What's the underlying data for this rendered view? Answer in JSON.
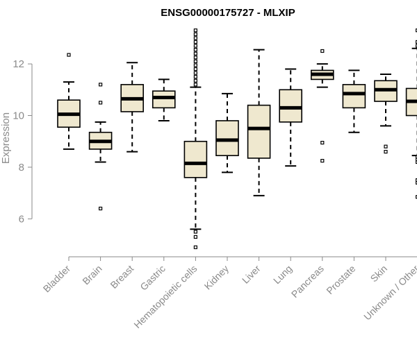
{
  "chart_data": {
    "type": "boxplot",
    "title": "ENSG00000175727 - MLXIP",
    "xlabel": "",
    "ylabel": "Expression",
    "ylim": [
      4.8,
      13.4
    ],
    "yticks": [
      6,
      8,
      10,
      12
    ],
    "box_fill": "#efe8cf",
    "stroke_color": "#000000",
    "axis_color": "#8a8a8a",
    "categories": [
      "Bladder",
      "Brain",
      "Breast",
      "Gastric",
      "Hematopoietic cells",
      "Kidney",
      "Liver",
      "Lung",
      "Pancreas",
      "Prostate",
      "Skin",
      "Unknown / Other"
    ],
    "boxes": [
      {
        "name": "Bladder",
        "whisker_low": 8.7,
        "q1": 9.55,
        "median": 10.05,
        "q3": 10.6,
        "whisker_high": 11.3,
        "outliers": [
          12.35
        ]
      },
      {
        "name": "Brain",
        "whisker_low": 8.2,
        "q1": 8.7,
        "median": 9.0,
        "q3": 9.35,
        "whisker_high": 9.75,
        "outliers": [
          6.4,
          10.5,
          11.2
        ]
      },
      {
        "name": "Breast",
        "whisker_low": 8.6,
        "q1": 10.15,
        "median": 10.65,
        "q3": 11.2,
        "whisker_high": 12.05,
        "outliers": []
      },
      {
        "name": "Gastric",
        "whisker_low": 9.8,
        "q1": 10.3,
        "median": 10.7,
        "q3": 10.95,
        "whisker_high": 11.4,
        "outliers": []
      },
      {
        "name": "Hematopoietic cells",
        "whisker_low": 5.6,
        "q1": 7.6,
        "median": 8.15,
        "q3": 9.0,
        "whisker_high": 11.1,
        "outliers": [
          4.9,
          5.3,
          5.5,
          11.2,
          11.35,
          11.5,
          11.65,
          11.8,
          11.95,
          12.1,
          12.25,
          12.4,
          12.55,
          12.7,
          12.85,
          13.0,
          13.15,
          13.3
        ]
      },
      {
        "name": "Kidney",
        "whisker_low": 7.8,
        "q1": 8.45,
        "median": 9.05,
        "q3": 9.8,
        "whisker_high": 10.85,
        "outliers": []
      },
      {
        "name": "Liver",
        "whisker_low": 6.9,
        "q1": 8.35,
        "median": 9.5,
        "q3": 10.4,
        "whisker_high": 12.55,
        "outliers": []
      },
      {
        "name": "Lung",
        "whisker_low": 8.05,
        "q1": 9.75,
        "median": 10.3,
        "q3": 11.0,
        "whisker_high": 11.8,
        "outliers": []
      },
      {
        "name": "Pancreas",
        "whisker_low": 11.1,
        "q1": 11.4,
        "median": 11.6,
        "q3": 11.75,
        "whisker_high": 12.0,
        "outliers": [
          8.25,
          8.95,
          12.5
        ]
      },
      {
        "name": "Prostate",
        "whisker_low": 9.35,
        "q1": 10.3,
        "median": 10.85,
        "q3": 11.2,
        "whisker_high": 11.75,
        "outliers": []
      },
      {
        "name": "Skin",
        "whisker_low": 9.6,
        "q1": 10.55,
        "median": 11.0,
        "q3": 11.35,
        "whisker_high": 11.6,
        "outliers": [
          8.6,
          8.8
        ]
      },
      {
        "name": "Unknown / Other",
        "whisker_low": 8.45,
        "q1": 10.0,
        "median": 10.55,
        "q3": 11.05,
        "whisker_high": 12.6,
        "outliers": [
          6.85,
          7.4,
          7.5,
          8.2,
          8.3,
          8.4,
          12.7,
          12.85,
          13.3
        ]
      }
    ]
  }
}
